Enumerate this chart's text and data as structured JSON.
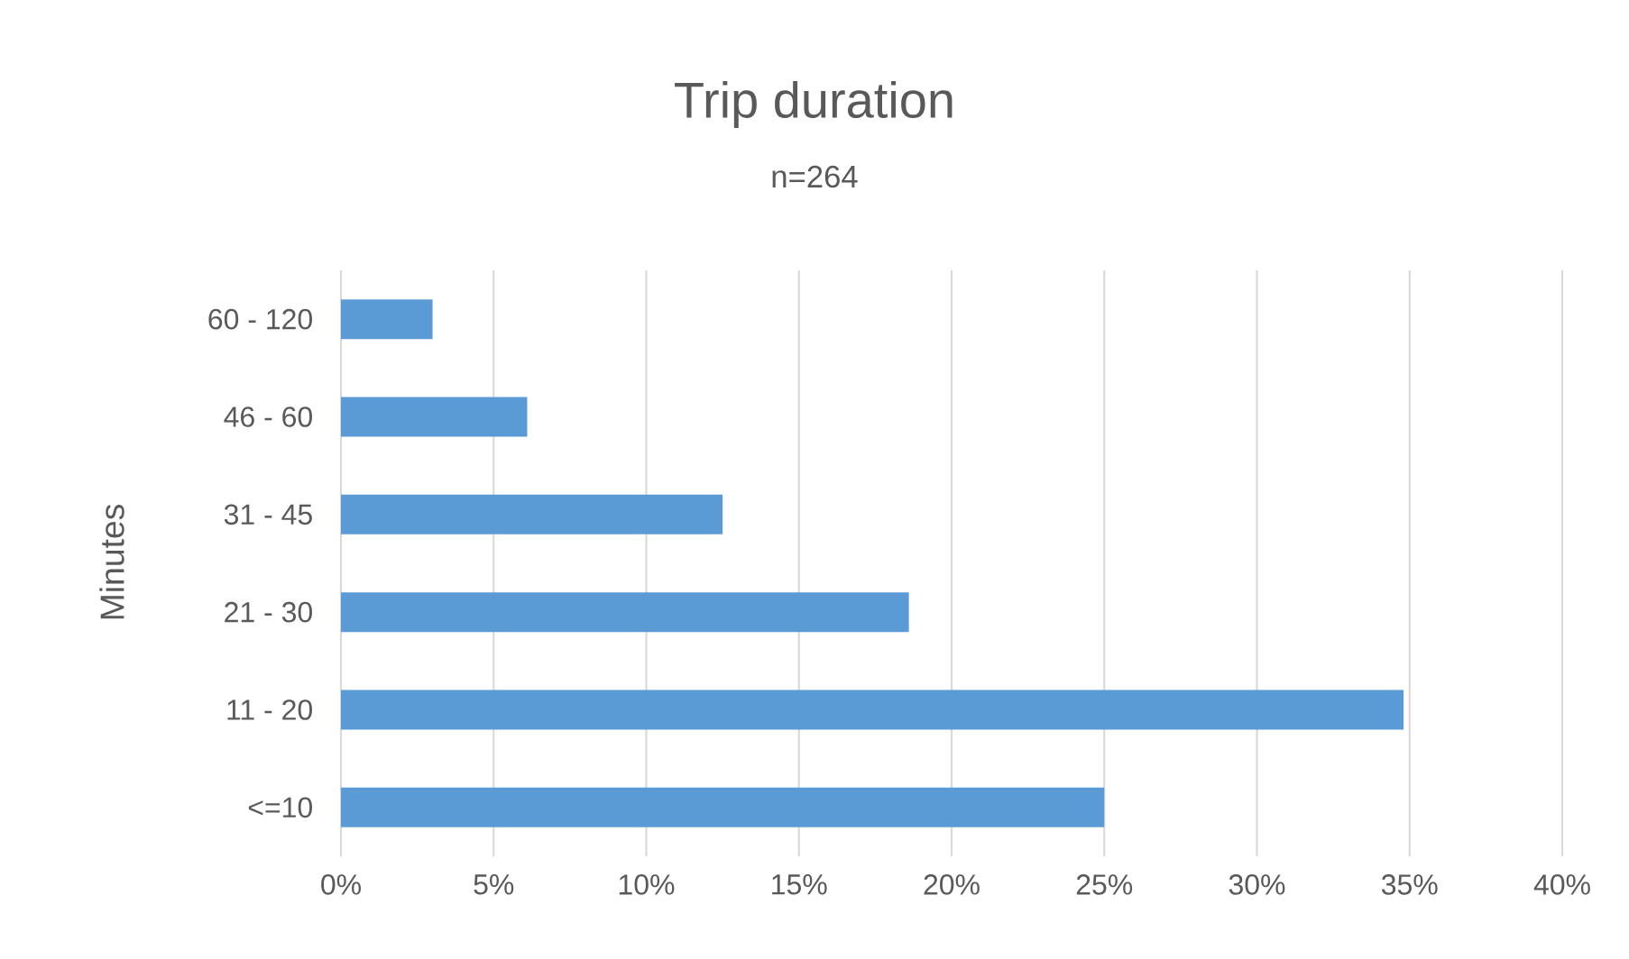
{
  "chart_data": {
    "type": "bar",
    "orientation": "horizontal",
    "title": "Trip duration",
    "subtitle": "n=264",
    "ylabel": "Minutes",
    "categories": [
      "60 - 120",
      "46 - 60",
      "31 - 45",
      "21 - 30",
      "11 - 20",
      "<=10"
    ],
    "values": [
      3.0,
      6.1,
      12.5,
      18.6,
      34.8,
      25.0
    ],
    "color": "#5b9bd5",
    "xlim": [
      0,
      40
    ],
    "xticks": [
      {
        "value": 0,
        "label": "0%"
      },
      {
        "value": 5,
        "label": "5%"
      },
      {
        "value": 10,
        "label": "10%"
      },
      {
        "value": 15,
        "label": "15%"
      },
      {
        "value": 20,
        "label": "20%"
      },
      {
        "value": 25,
        "label": "25%"
      },
      {
        "value": 30,
        "label": "30%"
      },
      {
        "value": 35,
        "label": "35%"
      },
      {
        "value": 40,
        "label": "40%"
      }
    ],
    "grid": "x"
  }
}
